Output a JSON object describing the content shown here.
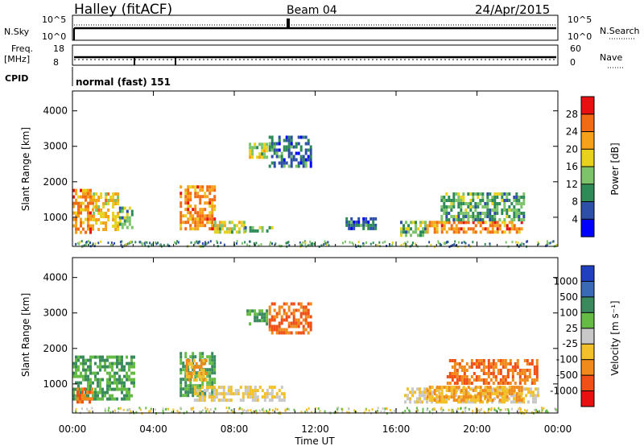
{
  "header": {
    "station": "Halley (fitACF)",
    "beam": "Beam 04",
    "date": "24/Apr/2015"
  },
  "panels": {
    "nsky": {
      "left_label": "N.Sky",
      "left_ticks": [
        "10^5",
        "10^0"
      ],
      "right_label": "N.Search",
      "right_ticks": [
        "10^5",
        "10^0"
      ]
    },
    "freq": {
      "left_label_1": "Freq.",
      "left_label_2": "[MHz]",
      "left_ticks": [
        "18",
        "8"
      ],
      "right_label": "Nave",
      "right_ticks": [
        "60",
        "0"
      ]
    },
    "cpid": {
      "label": "CPID",
      "value": "normal (fast) 151"
    }
  },
  "colorbars": {
    "power": {
      "label": "Power [dB]",
      "ticks": [
        "28",
        "24",
        "20",
        "16",
        "12",
        "8",
        "4"
      ],
      "colors": [
        "#0000ff",
        "#2d4fa8",
        "#2e8b57",
        "#7cc36a",
        "#e8d21e",
        "#f5a21a",
        "#f16a14",
        "#e81010"
      ]
    },
    "velocity": {
      "label": "Velocity [m s⁻¹]",
      "ticks": [
        "1000",
        "500",
        "100",
        "25",
        "-25",
        "-100",
        "-500",
        "-1000"
      ],
      "colors": [
        "#2040c0",
        "#3a6ab5",
        "#3b8a5e",
        "#66bb44",
        "#c8c8c8",
        "#f2c02a",
        "#f08a1c",
        "#f05018",
        "#e81010"
      ]
    }
  },
  "chart_data": [
    {
      "type": "heatmap",
      "title": "Power",
      "ylabel": "Slant Range [km]",
      "xlabel": "Time UT",
      "x_ticks": [
        "00:00",
        "04:00",
        "08:00",
        "12:00",
        "16:00",
        "20:00",
        "00:00"
      ],
      "y_ticks": [
        "1000",
        "2000",
        "3000",
        "4000"
      ],
      "xlim": [
        0,
        24
      ],
      "ylim": [
        180,
        4560
      ],
      "colorbar_label": "Power [dB]",
      "colorbar_ticks": [
        28,
        24,
        20,
        16,
        12,
        8,
        4
      ],
      "regions": [
        {
          "t": [
            0.0,
            1.0
          ],
          "r": [
            600,
            1800
          ],
          "level": 24
        },
        {
          "t": [
            1.0,
            2.3
          ],
          "r": [
            650,
            1700
          ],
          "level": 20
        },
        {
          "t": [
            2.3,
            3.0
          ],
          "r": [
            700,
            1300
          ],
          "level": 12
        },
        {
          "t": [
            5.3,
            7.0
          ],
          "r": [
            700,
            1900
          ],
          "level": 24
        },
        {
          "t": [
            7.0,
            8.5
          ],
          "r": [
            550,
            900
          ],
          "level": 16
        },
        {
          "t": [
            8.5,
            10.0
          ],
          "r": [
            600,
            750
          ],
          "level": 12
        },
        {
          "t": [
            8.6,
            9.6
          ],
          "r": [
            2700,
            3100
          ],
          "level": 16
        },
        {
          "t": [
            9.7,
            11.8
          ],
          "r": [
            2400,
            3300
          ],
          "level": 8
        },
        {
          "t": [
            13.5,
            15.0
          ],
          "r": [
            700,
            1000
          ],
          "level": 8
        },
        {
          "t": [
            16.2,
            17.5
          ],
          "r": [
            500,
            900
          ],
          "level": 12
        },
        {
          "t": [
            17.5,
            22.2
          ],
          "r": [
            550,
            900
          ],
          "level": 24
        },
        {
          "t": [
            18.2,
            22.3
          ],
          "r": [
            900,
            1700
          ],
          "level": 12
        }
      ]
    },
    {
      "type": "heatmap",
      "title": "Velocity",
      "ylabel": "Slant Range [km]",
      "xlabel": "Time UT",
      "x_ticks": [
        "00:00",
        "04:00",
        "08:00",
        "12:00",
        "16:00",
        "20:00",
        "00:00"
      ],
      "y_ticks": [
        "1000",
        "2000",
        "3000",
        "4000"
      ],
      "xlim": [
        0,
        24
      ],
      "ylim": [
        180,
        4560
      ],
      "colorbar_label": "Velocity [m s⁻¹]",
      "colorbar_ticks": [
        1000,
        500,
        100,
        25,
        -25,
        -100,
        -500,
        -1000
      ],
      "regions": [
        {
          "t": [
            0.0,
            3.0
          ],
          "r": [
            600,
            1800
          ],
          "value": 100
        },
        {
          "t": [
            0.2,
            1.0
          ],
          "r": [
            500,
            900
          ],
          "value": -500
        },
        {
          "t": [
            5.3,
            7.0
          ],
          "r": [
            700,
            1900
          ],
          "value": 100
        },
        {
          "t": [
            5.6,
            6.6
          ],
          "r": [
            1100,
            1700
          ],
          "value": -100
        },
        {
          "t": [
            6.0,
            10.5
          ],
          "r": [
            550,
            950
          ],
          "value": -25
        },
        {
          "t": [
            8.6,
            9.6
          ],
          "r": [
            2700,
            3100
          ],
          "value": 100
        },
        {
          "t": [
            9.7,
            11.8
          ],
          "r": [
            2400,
            3300
          ],
          "value": -500
        },
        {
          "t": [
            16.4,
            23.0
          ],
          "r": [
            500,
            900
          ],
          "value": -25
        },
        {
          "t": [
            17.5,
            22.2
          ],
          "r": [
            550,
            950
          ],
          "value": -100
        },
        {
          "t": [
            18.5,
            23.0
          ],
          "r": [
            1000,
            1700
          ],
          "value": -500
        }
      ]
    }
  ]
}
